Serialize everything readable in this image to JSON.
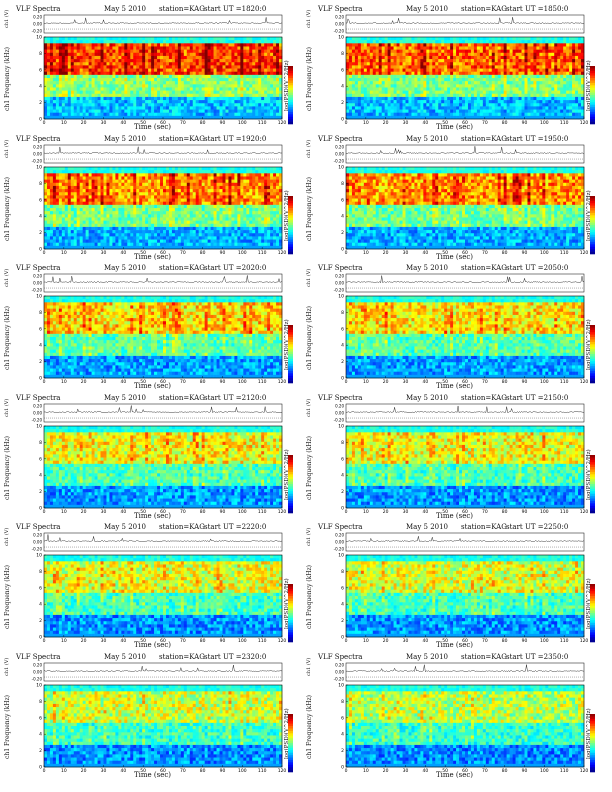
{
  "page": {
    "header_left": "VLF Spectra",
    "date": "May 5 2010",
    "station": "station=KAG",
    "start_prefix": "start",
    "ch_axis_label": "ch1 (V)",
    "freq_axis_label": "ch1 Frequency (kHz)",
    "time_axis_label": "Time (sec)",
    "colorbar_label": "log(PSD)(V^2/Hz)",
    "ch_ticks": [
      "0.20",
      "0.00",
      "-0.20"
    ],
    "freq_ticks": [
      "0",
      "2",
      "4",
      "6",
      "8",
      "10"
    ],
    "time_ticks": [
      "0",
      "10",
      "20",
      "30",
      "40",
      "50",
      "60",
      "70",
      "80",
      "90",
      "100",
      "110",
      "120"
    ]
  },
  "chart_data": [
    {
      "type": "heatmap",
      "title": "UT =1820:0",
      "xlabel": "Time (sec)",
      "ylabel": "ch1 Frequency (kHz)",
      "xlim": [
        0,
        120
      ],
      "ylim": [
        0,
        10
      ],
      "activity": 0.95
    },
    {
      "type": "heatmap",
      "title": "UT =1850:0",
      "xlabel": "Time (sec)",
      "ylabel": "ch1 Frequency (kHz)",
      "xlim": [
        0,
        120
      ],
      "ylim": [
        0,
        10
      ],
      "activity": 0.85
    },
    {
      "type": "heatmap",
      "title": "UT =1920:0",
      "xlabel": "Time (sec)",
      "ylabel": "ch1 Frequency (kHz)",
      "xlim": [
        0,
        120
      ],
      "ylim": [
        0,
        10
      ],
      "activity": 0.75
    },
    {
      "type": "heatmap",
      "title": "UT =1950:0",
      "xlabel": "Time (sec)",
      "ylabel": "ch1 Frequency (kHz)",
      "xlim": [
        0,
        120
      ],
      "ylim": [
        0,
        10
      ],
      "activity": 0.72
    },
    {
      "type": "heatmap",
      "title": "UT =2020:0",
      "xlabel": "Time (sec)",
      "ylabel": "ch1 Frequency (kHz)",
      "xlim": [
        0,
        120
      ],
      "ylim": [
        0,
        10
      ],
      "activity": 0.55
    },
    {
      "type": "heatmap",
      "title": "UT =2050:0",
      "xlabel": "Time (sec)",
      "ylabel": "ch1 Frequency (kHz)",
      "xlim": [
        0,
        120
      ],
      "ylim": [
        0,
        10
      ],
      "activity": 0.52
    },
    {
      "type": "heatmap",
      "title": "UT =2120:0",
      "xlabel": "Time (sec)",
      "ylabel": "ch1 Frequency (kHz)",
      "xlim": [
        0,
        120
      ],
      "ylim": [
        0,
        10
      ],
      "activity": 0.45
    },
    {
      "type": "heatmap",
      "title": "UT =2150:0",
      "xlabel": "Time (sec)",
      "ylabel": "ch1 Frequency (kHz)",
      "xlim": [
        0,
        120
      ],
      "ylim": [
        0,
        10
      ],
      "activity": 0.42
    },
    {
      "type": "heatmap",
      "title": "UT =2220:0",
      "xlabel": "Time (sec)",
      "ylabel": "ch1 Frequency (kHz)",
      "xlim": [
        0,
        120
      ],
      "ylim": [
        0,
        10
      ],
      "activity": 0.38
    },
    {
      "type": "heatmap",
      "title": "UT =2250:0",
      "xlabel": "Time (sec)",
      "ylabel": "ch1 Frequency (kHz)",
      "xlim": [
        0,
        120
      ],
      "ylim": [
        0,
        10
      ],
      "activity": 0.36
    },
    {
      "type": "heatmap",
      "title": "UT =2320:0",
      "xlabel": "Time (sec)",
      "ylabel": "ch1 Frequency (kHz)",
      "xlim": [
        0,
        120
      ],
      "ylim": [
        0,
        10
      ],
      "activity": 0.33
    },
    {
      "type": "heatmap",
      "title": "UT =2350:0",
      "xlabel": "Time (sec)",
      "ylabel": "ch1 Frequency (kHz)",
      "xlim": [
        0,
        120
      ],
      "ylim": [
        0,
        10
      ],
      "activity": 0.28
    }
  ]
}
